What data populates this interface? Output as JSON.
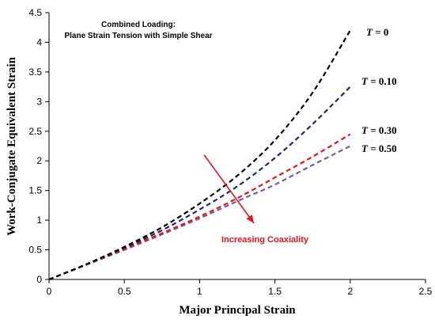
{
  "chart_data": {
    "type": "line",
    "title_lines": [
      "Combined Loading:",
      "Plane Strain Tension with Simple Shear"
    ],
    "xlabel": "Major Principal Strain",
    "ylabel": "Work-Conjugate Equivalent Strain",
    "xlim": [
      0,
      2.5
    ],
    "ylim": [
      0,
      4.5
    ],
    "xticks": [
      0,
      0.5,
      1,
      1.5,
      2,
      2.5
    ],
    "yticks": [
      0,
      0.5,
      1,
      1.5,
      2,
      2.5,
      3,
      3.5,
      4,
      4.5
    ],
    "xtick_labels": [
      "0",
      "0.5",
      "1",
      "1.5",
      "2",
      "2.5"
    ],
    "ytick_labels": [
      "0",
      "0.5",
      "1",
      "1.5",
      "2",
      "2.5",
      "3",
      "3.5",
      "4",
      "4.5"
    ],
    "grid": false,
    "legend": "inline labels at line ends",
    "series": [
      {
        "label_var": "T",
        "label_value": "= 0",
        "color": "#000000",
        "style": "dashed",
        "x": [
          0,
          0.25,
          0.5,
          0.75,
          1.0,
          1.25,
          1.5,
          1.75,
          2.0
        ],
        "y": [
          0,
          0.26,
          0.55,
          0.88,
          1.28,
          1.75,
          2.35,
          3.15,
          4.2
        ]
      },
      {
        "label_var": "T",
        "label_value": "= 0.10",
        "color": "#1a2a6c",
        "style": "dashed",
        "x": [
          0,
          0.25,
          0.5,
          0.75,
          1.0,
          1.25,
          1.5,
          1.75,
          2.0
        ],
        "y": [
          0,
          0.255,
          0.53,
          0.83,
          1.18,
          1.57,
          2.05,
          2.62,
          3.25
        ]
      },
      {
        "label_var": "T",
        "label_value": "= 0.30",
        "color": "#e8141c",
        "style": "dashed",
        "x": [
          0,
          0.25,
          0.5,
          0.75,
          1.0,
          1.25,
          1.5,
          1.75,
          2.0
        ],
        "y": [
          0,
          0.25,
          0.51,
          0.78,
          1.06,
          1.37,
          1.72,
          2.07,
          2.45
        ]
      },
      {
        "label_var": "T",
        "label_value": "= 0.50",
        "color": "#7a5a9a",
        "style": "dashed",
        "x": [
          0,
          0.25,
          0.5,
          0.75,
          1.0,
          1.25,
          1.5,
          1.75,
          2.0
        ],
        "y": [
          0,
          0.25,
          0.5,
          0.76,
          1.03,
          1.32,
          1.6,
          1.93,
          2.25
        ]
      }
    ],
    "annotation": {
      "text": "Increasing Coaxiality",
      "color": "#e8141c",
      "arrow_from": [
        1.03,
        2.1
      ],
      "arrow_to": [
        1.36,
        0.95
      ]
    }
  }
}
